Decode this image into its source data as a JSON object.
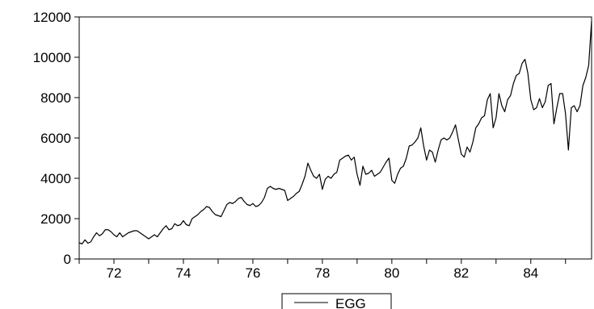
{
  "chart_data": {
    "type": "line",
    "title": "",
    "xlabel": "",
    "ylabel": "",
    "x_start": 1971.0,
    "x_step": 0.0833333,
    "xlim": [
      1971.0,
      1985.75
    ],
    "ylim": [
      0,
      12000
    ],
    "y_ticks": [
      0,
      2000,
      4000,
      6000,
      8000,
      10000,
      12000
    ],
    "y_tick_labels": [
      "0",
      "2000",
      "4000",
      "6000",
      "8000",
      "10000",
      "12000"
    ],
    "x_ticks": [
      1972,
      1974,
      1976,
      1978,
      1980,
      1982,
      1984
    ],
    "x_tick_labels": [
      "72",
      "74",
      "76",
      "78",
      "80",
      "82",
      "84"
    ],
    "grid": false,
    "legend_position": "bottom-center",
    "series": [
      {
        "name": "EGG",
        "color": "#000000",
        "values": [
          800,
          750,
          950,
          780,
          850,
          1100,
          1300,
          1150,
          1250,
          1450,
          1450,
          1350,
          1200,
          1100,
          1300,
          1100,
          1200,
          1300,
          1350,
          1400,
          1400,
          1300,
          1200,
          1100,
          1000,
          1100,
          1200,
          1100,
          1300,
          1500,
          1650,
          1450,
          1500,
          1750,
          1650,
          1700,
          1900,
          1700,
          1650,
          2000,
          2100,
          2200,
          2350,
          2450,
          2600,
          2550,
          2350,
          2200,
          2150,
          2100,
          2400,
          2700,
          2800,
          2750,
          2850,
          3000,
          3050,
          2850,
          2700,
          2650,
          2750,
          2600,
          2650,
          2800,
          3050,
          3500,
          3600,
          3500,
          3450,
          3500,
          3450,
          3400,
          2900,
          3000,
          3100,
          3250,
          3350,
          3700,
          4100,
          4750,
          4400,
          4100,
          4000,
          4200,
          3450,
          3950,
          4100,
          4000,
          4200,
          4300,
          4900,
          5000,
          5100,
          5150,
          4900,
          5050,
          4200,
          3650,
          4600,
          4200,
          4250,
          4400,
          4100,
          4200,
          4300,
          4550,
          4800,
          5000,
          3900,
          3750,
          4200,
          4500,
          4600,
          5000,
          5600,
          5650,
          5800,
          6000,
          6500,
          5600,
          4900,
          5400,
          5300,
          4800,
          5400,
          5900,
          6000,
          5900,
          6000,
          6300,
          6650,
          5900,
          5200,
          5050,
          5550,
          5300,
          5800,
          6500,
          6700,
          7000,
          7100,
          7900,
          8200,
          6500,
          7000,
          8200,
          7600,
          7300,
          7900,
          8100,
          8700,
          9100,
          9200,
          9700,
          9900,
          9200,
          7900,
          7400,
          7500,
          7950,
          7500,
          7800,
          8600,
          8700,
          6700,
          7500,
          8200,
          8200,
          7200,
          5400,
          7500,
          7600,
          7300,
          7600,
          8600,
          9000,
          9600,
          11800
        ]
      }
    ]
  }
}
